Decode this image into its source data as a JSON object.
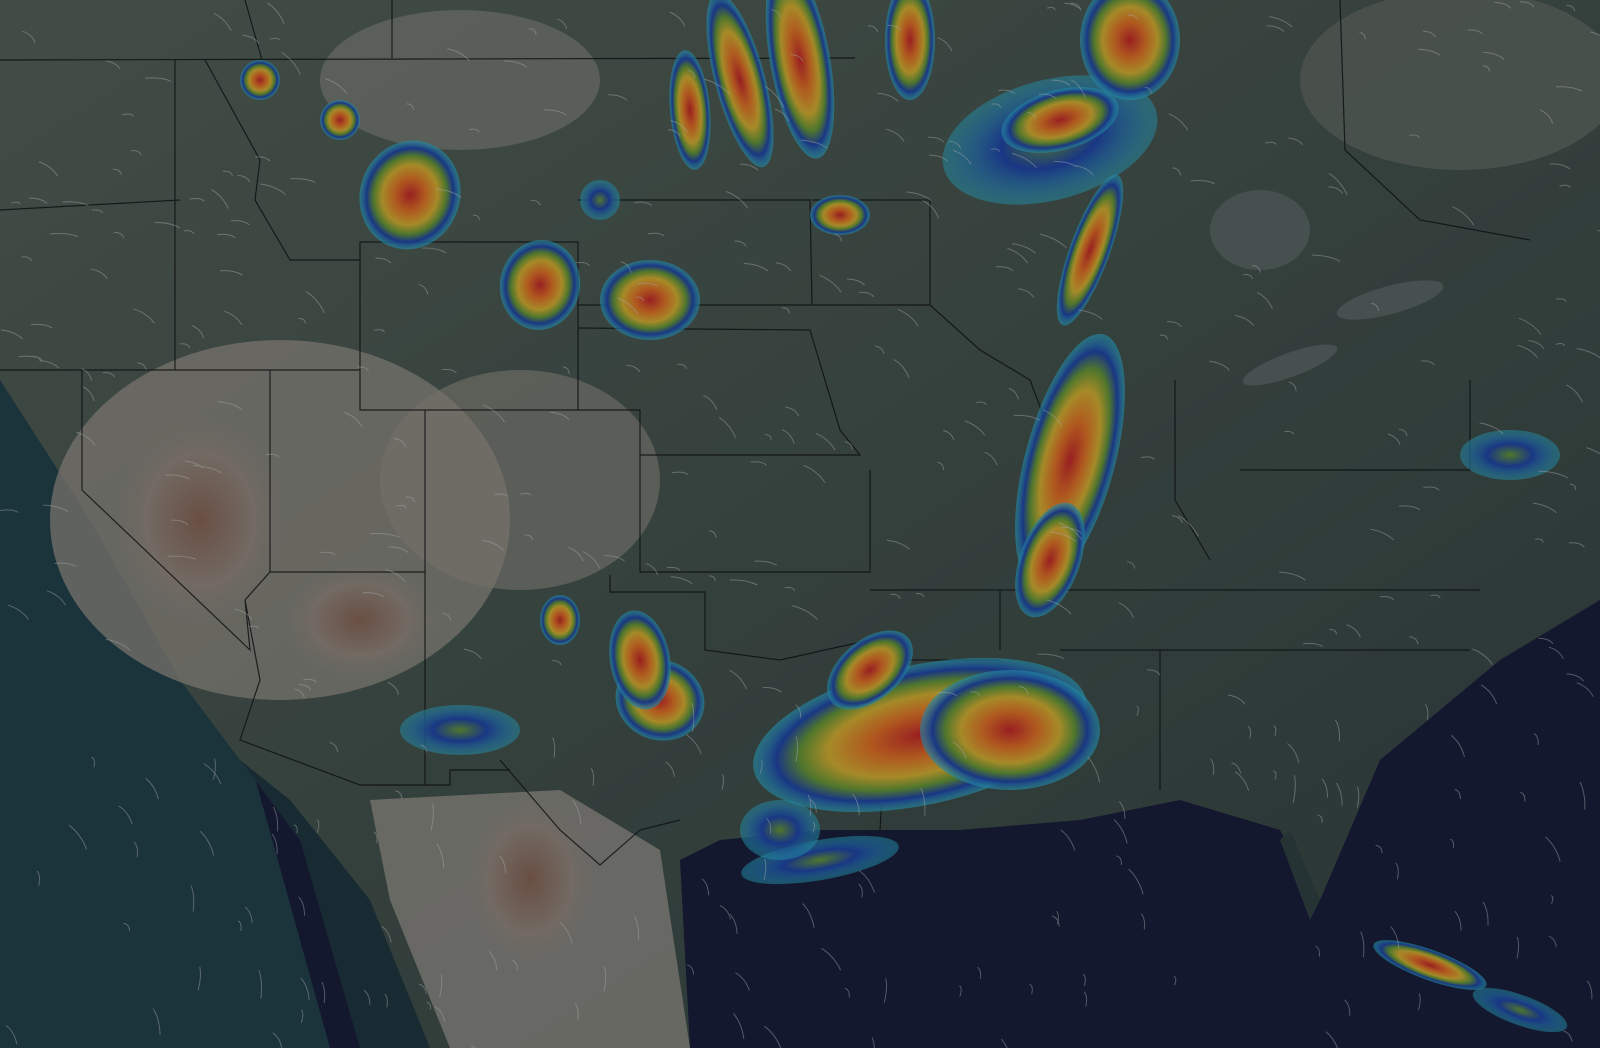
{
  "map": {
    "type": "weather-radar-overlay",
    "region": "contiguous-us-south-central",
    "layers": [
      "terrain",
      "state-borders",
      "precipitation-radar",
      "wind-streamlines"
    ],
    "colors": {
      "pacific": "#1f3c42",
      "gulf": "#141a33",
      "land": "#3c4a42",
      "desert": "#8c8579",
      "desert_brown": "#7a5a48",
      "border": "#111111",
      "radar_light": "#2aa9c4",
      "radar_blue": "#1d3f9a",
      "radar_green": "#5f8d2f",
      "radar_yellow": "#d1a92a",
      "radar_orange": "#d46a1f",
      "radar_red": "#b82322",
      "radar_magenta": "#c0399a",
      "wind": "#c9c9c9"
    }
  }
}
